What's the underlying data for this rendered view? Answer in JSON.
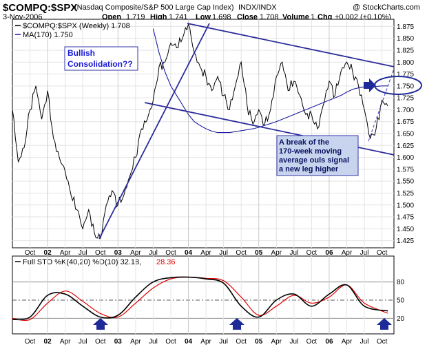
{
  "header": {
    "symbol": "$COMPQ:$SPX",
    "description": "(Nasdaq Composite/S&P 500 Large Cap Index)",
    "exchange": "INDX/INDX",
    "watermark": "@ StockCharts.com",
    "date": "3-Nov-2006",
    "stats": {
      "open_label": "Open",
      "open": "1.719",
      "high_label": "High",
      "high": "1.741",
      "low_label": "Low",
      "low": "1.698",
      "close_label": "Close",
      "close": "1.708",
      "volume_label": "Volume",
      "volume": "1",
      "chg_label": "Chg",
      "chg": "+0.002 (+0.10%)"
    }
  },
  "colors": {
    "price_line": "#000000",
    "ma_line": "#1a1aa0",
    "trendline": "#2b2b9b",
    "stoch_k": "#000000",
    "stoch_d": "#e00000",
    "annotation_blue": "#1b1bd6",
    "annotation_box_bg": "#c8d4ee",
    "arrow": "#1f2a99"
  },
  "annotations": {
    "bullish_line1": "Bullish",
    "bullish_line2": "Consolidation??",
    "break_line1": "A break of the",
    "break_line2": "170-week moving",
    "break_line3": "average ouls signal",
    "break_line4": "a new leg higher"
  },
  "chart_data": [
    {
      "type": "line",
      "name": "price-panel",
      "legend": [
        {
          "label": "$COMPQ:$SPX (Weekly) 1.708",
          "color": "#000000"
        },
        {
          "label": "MA(170) 1.750",
          "color": "#1a1aa0"
        }
      ],
      "legend_position": "top-left",
      "ylim": [
        1.41,
        1.89
      ],
      "y_ticks": [
        "1.875",
        "1.850",
        "1.825",
        "1.800",
        "1.775",
        "1.750",
        "1.725",
        "1.700",
        "1.675",
        "1.650",
        "1.625",
        "1.600",
        "1.575",
        "1.550",
        "1.525",
        "1.500",
        "1.475",
        "1.450",
        "1.425"
      ],
      "x_ticks": [
        "Oct",
        "02",
        "Apr",
        "Jul",
        "Oct",
        "03",
        "Apr",
        "Jul",
        "Oct",
        "04",
        "Apr",
        "Jul",
        "Oct",
        "05",
        "Apr",
        "Jul",
        "Oct",
        "06",
        "Apr",
        "Jul",
        "Oct"
      ],
      "grid": true,
      "x": [
        "2001-07",
        "2001-08",
        "2001-09",
        "2001-10",
        "2001-11",
        "2001-12",
        "2002-01",
        "2002-02",
        "2002-03",
        "2002-04",
        "2002-05",
        "2002-06",
        "2002-07",
        "2002-08",
        "2002-09",
        "2002-10",
        "2002-11",
        "2002-12",
        "2003-01",
        "2003-02",
        "2003-03",
        "2003-04",
        "2003-05",
        "2003-06",
        "2003-07",
        "2003-08",
        "2003-09",
        "2003-10",
        "2003-11",
        "2003-12",
        "2004-01",
        "2004-02",
        "2004-03",
        "2004-04",
        "2004-05",
        "2004-06",
        "2004-07",
        "2004-08",
        "2004-09",
        "2004-10",
        "2004-11",
        "2004-12",
        "2005-01",
        "2005-02",
        "2005-03",
        "2005-04",
        "2005-05",
        "2005-06",
        "2005-07",
        "2005-08",
        "2005-09",
        "2005-10",
        "2005-11",
        "2005-12",
        "2006-01",
        "2006-02",
        "2006-03",
        "2006-04",
        "2006-05",
        "2006-06",
        "2006-07",
        "2006-08",
        "2006-09",
        "2006-10",
        "2006-11"
      ],
      "series": [
        {
          "name": "$COMPQ:$SPX (Weekly)",
          "values": [
            1.7,
            1.59,
            1.62,
            1.7,
            1.75,
            1.68,
            1.74,
            1.64,
            1.6,
            1.57,
            1.52,
            1.49,
            1.45,
            1.49,
            1.44,
            1.43,
            1.5,
            1.53,
            1.5,
            1.52,
            1.56,
            1.6,
            1.66,
            1.68,
            1.72,
            1.79,
            1.8,
            1.84,
            1.83,
            1.85,
            1.88,
            1.82,
            1.79,
            1.77,
            1.74,
            1.77,
            1.73,
            1.7,
            1.75,
            1.8,
            1.71,
            1.67,
            1.7,
            1.67,
            1.7,
            1.77,
            1.8,
            1.74,
            1.76,
            1.73,
            1.69,
            1.69,
            1.66,
            1.71,
            1.76,
            1.73,
            1.78,
            1.8,
            1.78,
            1.75,
            1.7,
            1.64,
            1.66,
            1.72,
            1.708
          ]
        },
        {
          "name": "MA(170)",
          "values": [
            null,
            null,
            null,
            null,
            null,
            null,
            null,
            null,
            null,
            null,
            null,
            null,
            null,
            null,
            null,
            null,
            null,
            null,
            null,
            null,
            null,
            null,
            null,
            null,
            1.87,
            1.82,
            1.78,
            1.75,
            1.73,
            1.71,
            1.69,
            1.675,
            1.667,
            1.66,
            1.655,
            1.652,
            1.652,
            1.652,
            1.654,
            1.656,
            1.658,
            1.66,
            1.663,
            1.667,
            1.671,
            1.675,
            1.68,
            1.685,
            1.69,
            1.695,
            1.7,
            1.705,
            1.71,
            1.715,
            1.72,
            1.725,
            1.73,
            1.737,
            1.743,
            1.746,
            1.748,
            1.749,
            1.749,
            1.75,
            1.75
          ]
        }
      ]
    },
    {
      "type": "line",
      "name": "stochastic-panel",
      "legend": [
        {
          "label": "Full STO %K(40,20) %D(10) 32.18,",
          "color": "#000000"
        },
        {
          "label": "28.36",
          "color": "#e00000"
        }
      ],
      "legend_position": "top-left",
      "ylim": [
        0,
        100
      ],
      "y_ticks": [
        "80",
        "50",
        "20"
      ],
      "x_ticks": [
        "Oct",
        "02",
        "Apr",
        "Jul",
        "Oct",
        "03",
        "Apr",
        "Jul",
        "Oct",
        "04",
        "Apr",
        "Jul",
        "Oct",
        "05",
        "Apr",
        "Jul",
        "Oct",
        "06",
        "Apr",
        "Jul",
        "Oct"
      ],
      "x": [
        "2001-07",
        "2001-10",
        "2002-01",
        "2002-04",
        "2002-07",
        "2002-10",
        "2003-01",
        "2003-04",
        "2003-07",
        "2003-10",
        "2004-01",
        "2004-04",
        "2004-07",
        "2004-10",
        "2005-01",
        "2005-04",
        "2005-07",
        "2005-10",
        "2006-01",
        "2006-04",
        "2006-07",
        "2006-11"
      ],
      "series": [
        {
          "name": "%K(40,20)",
          "values": [
            18,
            22,
            58,
            60,
            40,
            22,
            25,
            55,
            80,
            87,
            88,
            85,
            78,
            40,
            22,
            50,
            60,
            40,
            60,
            75,
            40,
            32.18
          ]
        },
        {
          "name": "%D(10)",
          "values": [
            20,
            18,
            45,
            65,
            48,
            28,
            22,
            45,
            70,
            85,
            88,
            86,
            82,
            55,
            25,
            40,
            58,
            45,
            55,
            75,
            45,
            28.36
          ]
        }
      ]
    }
  ]
}
